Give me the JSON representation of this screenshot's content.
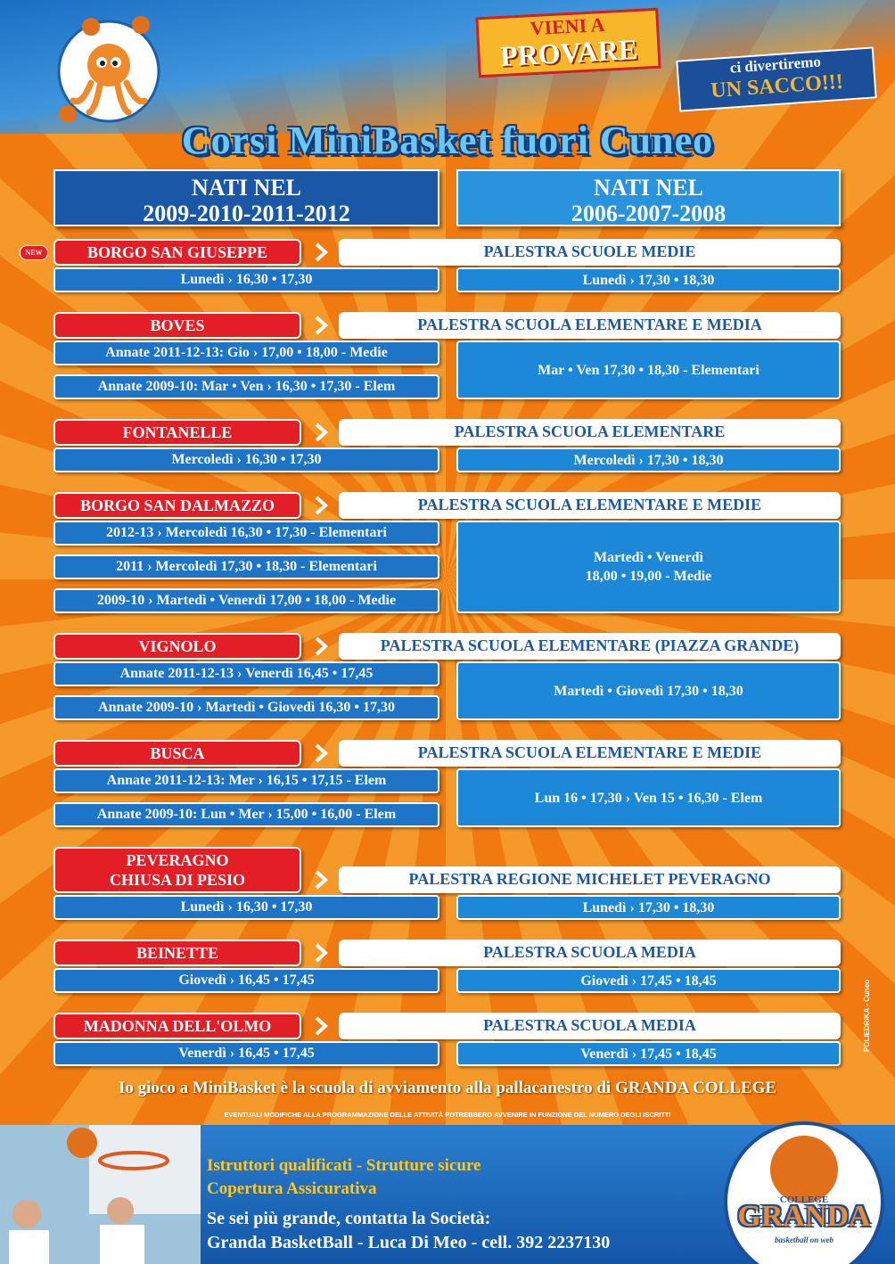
{
  "badge": {
    "line1": "VIENI A",
    "line2": "PROVARE"
  },
  "badge2": {
    "line1": "ci divertiremo",
    "line2": "UN SACCO!!!"
  },
  "title": "Corsi MiniBasket fuori Cuneo",
  "columns": [
    {
      "line1": "NATI NEL",
      "line2": "2009-2010-2011-2012"
    },
    {
      "line1": "NATI NEL",
      "line2": "2006-2007-2008"
    }
  ],
  "new_tag": "NEW",
  "locations": [
    {
      "name": "BORGO SAN GIUSEPPE",
      "venue": "PALESTRA SCUOLE MEDIE",
      "left": [
        "Lunedì › 16,30 • 17,30"
      ],
      "right": [
        "Lunedì › 17,30 • 18,30"
      ]
    },
    {
      "name": "BOVES",
      "venue": "PALESTRA SCUOLA ELEMENTARE E MEDIA",
      "left": [
        "Annate 2011-12-13: Gio › 17,00 • 18,00 - Medie",
        "Annate 2009-10: Mar • Ven › 16,30 • 17,30 - Elem"
      ],
      "right": [
        "Mar • Ven 17,30 • 18,30 - Elementari"
      ]
    },
    {
      "name": "FONTANELLE",
      "venue": "PALESTRA SCUOLA ELEMENTARE",
      "left": [
        "Mercoledì › 16,30 • 17,30"
      ],
      "right": [
        "Mercoledì › 17,30 • 18,30"
      ]
    },
    {
      "name": "BORGO SAN DALMAZZO",
      "venue": "PALESTRA SCUOLA ELEMENTARE E MEDIE",
      "left": [
        "2012-13 › Mercoledì 16,30 • 17,30 - Elementari",
        "2011 › Mercoledì 17,30 • 18,30 - Elementari",
        "2009-10 › Martedì • Venerdì 17,00 • 18,00 - Medie"
      ],
      "right": [
        "Martedì • Venerdì",
        "18,00 • 19,00 - Medie"
      ]
    },
    {
      "name": "VIGNOLO",
      "venue": "PALESTRA SCUOLA ELEMENTARE (PIAZZA GRANDE)",
      "left": [
        "Annate 2011-12-13 › Venerdì 16,45 • 17,45",
        "Annate 2009-10 › Martedì • Giovedì 16,30 • 17,30"
      ],
      "right": [
        "Martedì • Giovedì 17,30 • 18,30"
      ]
    },
    {
      "name": "BUSCA",
      "venue": "PALESTRA SCUOLA ELEMENTARE E MEDIE",
      "left": [
        "Annate 2011-12-13: Mer › 16,15 • 17,15 - Elem",
        "Annate 2009-10: Lun • Mer › 15,00 • 16,00 - Elem"
      ],
      "right": [
        "Lun 16 • 17,30 › Ven 15 • 16,30 - Elem"
      ]
    },
    {
      "name": "PEVERAGNO\nCHIUSA DI PESIO",
      "venue": "PALESTRA REGIONE MICHELET PEVERAGNO",
      "left": [
        "Lunedì › 16,30 • 17,30"
      ],
      "right": [
        "Lunedì › 17,30 • 18,30"
      ]
    },
    {
      "name": "BEINETTE",
      "venue": "PALESTRA SCUOLA MEDIA",
      "left": [
        "Giovedì › 16,45 • 17,45"
      ],
      "right": [
        "Giovedì › 17,45 • 18,45"
      ]
    },
    {
      "name": "MADONNA DELL'OLMO",
      "venue": "PALESTRA SCUOLA MEDIA",
      "left": [
        "Venerdì › 16,45 • 17,45"
      ],
      "right": [
        "Venerdì › 17,45 • 18,45"
      ]
    }
  ],
  "credit": "POLIEDRIKA - Cuneo",
  "motto": "Io gioco a MiniBasket è la scuola di avviamento alla pallacanestro di GRANDA COLLEGE",
  "notice": "EVENTUALI MODIFICHE ALLA PROGRAMMAZIONE DELLE ATTIVITÀ POTREBBERO AVVENIRE IN FUNZIONE DEL NUMERO DEGLI ISCRITTI",
  "features": [
    "Istruttori qualificati - Strutture sicure",
    "Copertura Assicurativa"
  ],
  "contact": [
    "Se sei più grande, contatta la Società:",
    "Granda BasketBall - Luca Di Meo - cell. 392 2237130"
  ],
  "logo": {
    "name": "GRANDA",
    "sub": "COLLEGE",
    "tagline": "basketball on web"
  }
}
